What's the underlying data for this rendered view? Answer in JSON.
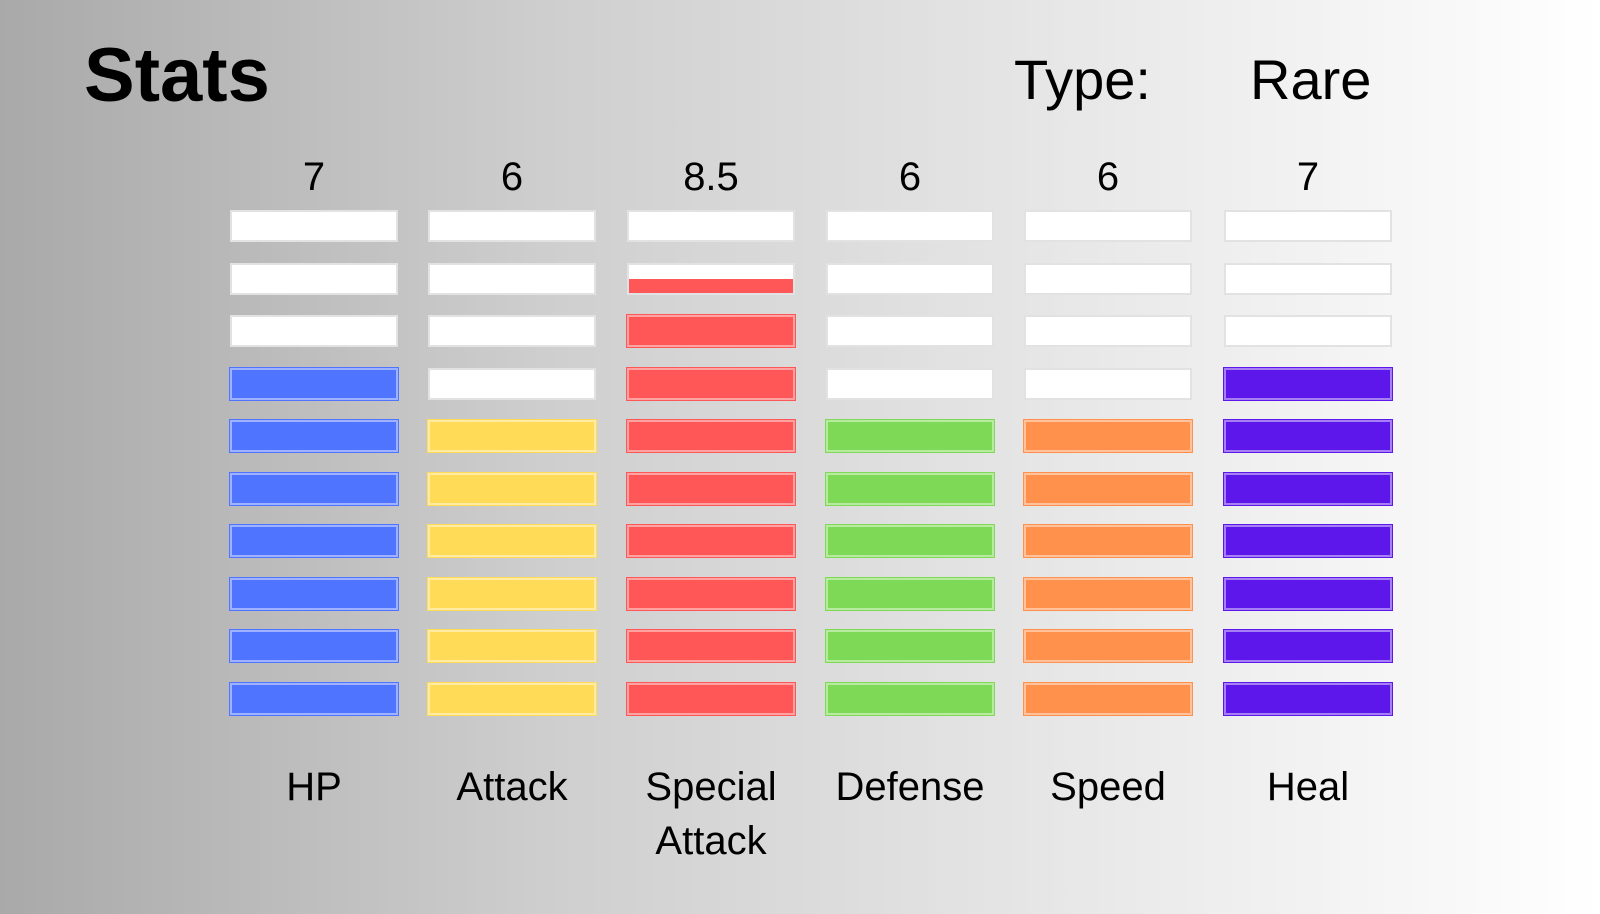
{
  "header": {
    "title": "Stats",
    "type_label": "Type:",
    "type_value": "Rare"
  },
  "chart_data": {
    "type": "bar",
    "segments_per_bar": 10,
    "categories": [
      "HP",
      "Attack",
      "Special Attack",
      "Defense",
      "Speed",
      "Heal"
    ],
    "label_lines": [
      [
        "HP"
      ],
      [
        "Attack"
      ],
      [
        "Special",
        "Attack"
      ],
      [
        "Defense"
      ],
      [
        "Speed"
      ],
      [
        "Heal"
      ]
    ],
    "value_labels": [
      "7",
      "6",
      "8.5",
      "6",
      "6",
      "7"
    ],
    "values": [
      7,
      6,
      8.5,
      6,
      6,
      7
    ],
    "colors": [
      "#4f74ff",
      "#ffdb58",
      "#ff5757",
      "#7ed957",
      "#ff914d",
      "#5e17eb"
    ],
    "empty_color": "#ffffff",
    "ylim": [
      0,
      10
    ]
  }
}
